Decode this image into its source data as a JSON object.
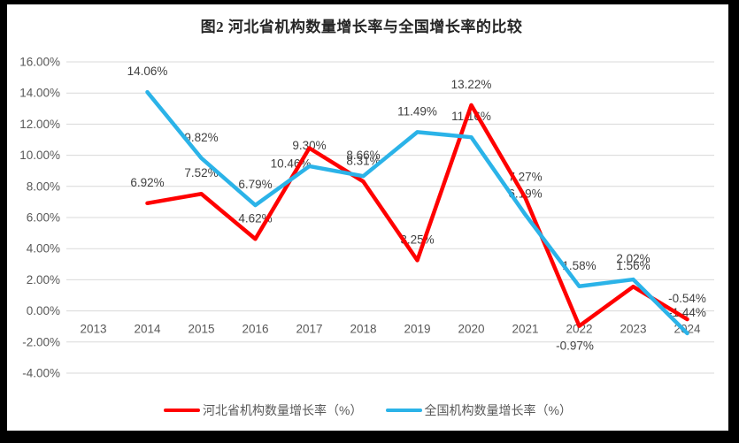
{
  "chart_data": {
    "type": "line",
    "title": "图2 河北省机构数量增长率与全国增长率的比较",
    "categories": [
      "2013",
      "2014",
      "2015",
      "2016",
      "2017",
      "2018",
      "2019",
      "2020",
      "2021",
      "2022",
      "2023",
      "2024"
    ],
    "series": [
      {
        "name": "河北省机构数量增长率（%）",
        "color": "#FF0000",
        "values": [
          null,
          6.92,
          7.52,
          4.62,
          10.46,
          8.31,
          3.25,
          13.22,
          7.27,
          -0.97,
          1.56,
          -0.54
        ]
      },
      {
        "name": "全国机构数量增长率（%）",
        "color": "#2BB3E8",
        "values": [
          null,
          14.06,
          9.82,
          6.79,
          9.3,
          8.66,
          11.49,
          11.16,
          6.19,
          1.58,
          2.02,
          -1.44
        ]
      }
    ],
    "y_ticks": [
      "16.00%",
      "14.00%",
      "12.00%",
      "10.00%",
      "8.00%",
      "6.00%",
      "4.00%",
      "2.00%",
      "0.00%",
      "-2.00%",
      "-4.00%"
    ],
    "ylim": [
      -4,
      16
    ],
    "y_step": 2,
    "xlabel": "",
    "ylabel": "",
    "grid": "horizontal",
    "legend_position": "bottom",
    "data_labels": "all points, two decimals with % suffix"
  },
  "colors": {
    "grid": "#D9D9D9",
    "axis_text": "#595959",
    "label_text": "#404040",
    "title_text": "#262626",
    "frame": "#000000",
    "background": "#FFFFFF"
  }
}
